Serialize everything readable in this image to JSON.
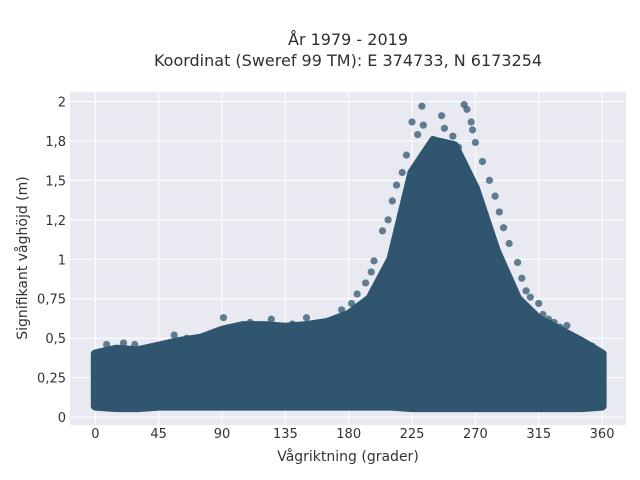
{
  "chart_data": {
    "type": "scatter",
    "title_line1": "År 1979 - 2019",
    "title_line2": "Koordinat (Sweref 99 TM): E 374733, N 6173254",
    "xlabel": "Vågriktning (grader)",
    "ylabel": "Signifikant våghöjd (m)",
    "xlim": [
      -18,
      377
    ],
    "ylim": [
      -0.05,
      2.06
    ],
    "xticks": [
      0,
      45,
      90,
      135,
      180,
      225,
      270,
      315,
      360
    ],
    "xtick_labels": [
      "0",
      "45",
      "90",
      "135",
      "180",
      "225",
      "270",
      "315",
      "360"
    ],
    "yticks": [
      0,
      0.25,
      0.5,
      0.75,
      1.0,
      1.25,
      1.5,
      1.75,
      2.0
    ],
    "ytick_labels": [
      "0",
      "0,25",
      "0,5",
      "0,75",
      "1",
      "1,2",
      "1,5",
      "1,8",
      "2"
    ],
    "grid": true,
    "marker_color": "#2f566e",
    "background_color": "#e9e9f1",
    "envelope": {
      "direction_deg": [
        0,
        15,
        30,
        45,
        60,
        75,
        90,
        105,
        120,
        135,
        150,
        165,
        180,
        195,
        210,
        225,
        240,
        255,
        270,
        285,
        300,
        315,
        330,
        345,
        360
      ],
      "min_height_m": [
        0.07,
        0.06,
        0.06,
        0.07,
        0.07,
        0.07,
        0.07,
        0.07,
        0.07,
        0.07,
        0.07,
        0.07,
        0.07,
        0.07,
        0.07,
        0.06,
        0.06,
        0.06,
        0.06,
        0.06,
        0.06,
        0.06,
        0.06,
        0.06,
        0.07
      ],
      "max_height_m": [
        0.4,
        0.43,
        0.42,
        0.45,
        0.48,
        0.5,
        0.55,
        0.58,
        0.58,
        0.57,
        0.58,
        0.6,
        0.65,
        0.75,
        1.0,
        1.55,
        1.75,
        1.72,
        1.45,
        1.05,
        0.75,
        0.62,
        0.55,
        0.48,
        0.4
      ]
    },
    "points": [
      {
        "x": 232,
        "y": 1.97
      },
      {
        "x": 262,
        "y": 1.98
      },
      {
        "x": 264,
        "y": 1.95
      },
      {
        "x": 246,
        "y": 1.91
      },
      {
        "x": 225,
        "y": 1.87
      },
      {
        "x": 267,
        "y": 1.87
      },
      {
        "x": 248,
        "y": 1.83
      },
      {
        "x": 233,
        "y": 1.85
      },
      {
        "x": 268,
        "y": 1.82
      },
      {
        "x": 229,
        "y": 1.79
      },
      {
        "x": 254,
        "y": 1.78
      },
      {
        "x": 240,
        "y": 1.76
      },
      {
        "x": 270,
        "y": 1.74
      },
      {
        "x": 221,
        "y": 1.66
      },
      {
        "x": 236,
        "y": 1.68
      },
      {
        "x": 258,
        "y": 1.71
      },
      {
        "x": 275,
        "y": 1.62
      },
      {
        "x": 218,
        "y": 1.55
      },
      {
        "x": 280,
        "y": 1.5
      },
      {
        "x": 214,
        "y": 1.47
      },
      {
        "x": 284,
        "y": 1.4
      },
      {
        "x": 211,
        "y": 1.37
      },
      {
        "x": 287,
        "y": 1.3
      },
      {
        "x": 208,
        "y": 1.25
      },
      {
        "x": 290,
        "y": 1.2
      },
      {
        "x": 204,
        "y": 1.18
      },
      {
        "x": 294,
        "y": 1.1
      },
      {
        "x": 198,
        "y": 0.99
      },
      {
        "x": 300,
        "y": 0.98
      },
      {
        "x": 196,
        "y": 0.92
      },
      {
        "x": 303,
        "y": 0.88
      },
      {
        "x": 192,
        "y": 0.85
      },
      {
        "x": 306,
        "y": 0.8
      },
      {
        "x": 186,
        "y": 0.78
      },
      {
        "x": 309,
        "y": 0.76
      },
      {
        "x": 182,
        "y": 0.72
      },
      {
        "x": 315,
        "y": 0.72
      },
      {
        "x": 175,
        "y": 0.68
      },
      {
        "x": 318,
        "y": 0.65
      },
      {
        "x": 150,
        "y": 0.63
      },
      {
        "x": 322,
        "y": 0.62
      },
      {
        "x": 335,
        "y": 0.58
      },
      {
        "x": 91,
        "y": 0.63
      },
      {
        "x": 125,
        "y": 0.62
      },
      {
        "x": 100,
        "y": 0.57
      },
      {
        "x": 56,
        "y": 0.52
      },
      {
        "x": 65,
        "y": 0.5
      },
      {
        "x": 78,
        "y": 0.51
      },
      {
        "x": 110,
        "y": 0.6
      },
      {
        "x": 140,
        "y": 0.59
      },
      {
        "x": 160,
        "y": 0.6
      },
      {
        "x": 20,
        "y": 0.47
      },
      {
        "x": 28,
        "y": 0.46
      },
      {
        "x": 40,
        "y": 0.43
      },
      {
        "x": 8,
        "y": 0.46
      },
      {
        "x": 2,
        "y": 0.4
      },
      {
        "x": 353,
        "y": 0.45
      },
      {
        "x": 348,
        "y": 0.42
      },
      {
        "x": 342,
        "y": 0.5
      },
      {
        "x": 357,
        "y": 0.38
      },
      {
        "x": 12,
        "y": 0.42
      },
      {
        "x": 33,
        "y": 0.38
      },
      {
        "x": 50,
        "y": 0.45
      },
      {
        "x": 85,
        "y": 0.53
      },
      {
        "x": 118,
        "y": 0.55
      },
      {
        "x": 132,
        "y": 0.57
      },
      {
        "x": 170,
        "y": 0.62
      },
      {
        "x": 330,
        "y": 0.57
      },
      {
        "x": 326,
        "y": 0.6
      }
    ]
  }
}
